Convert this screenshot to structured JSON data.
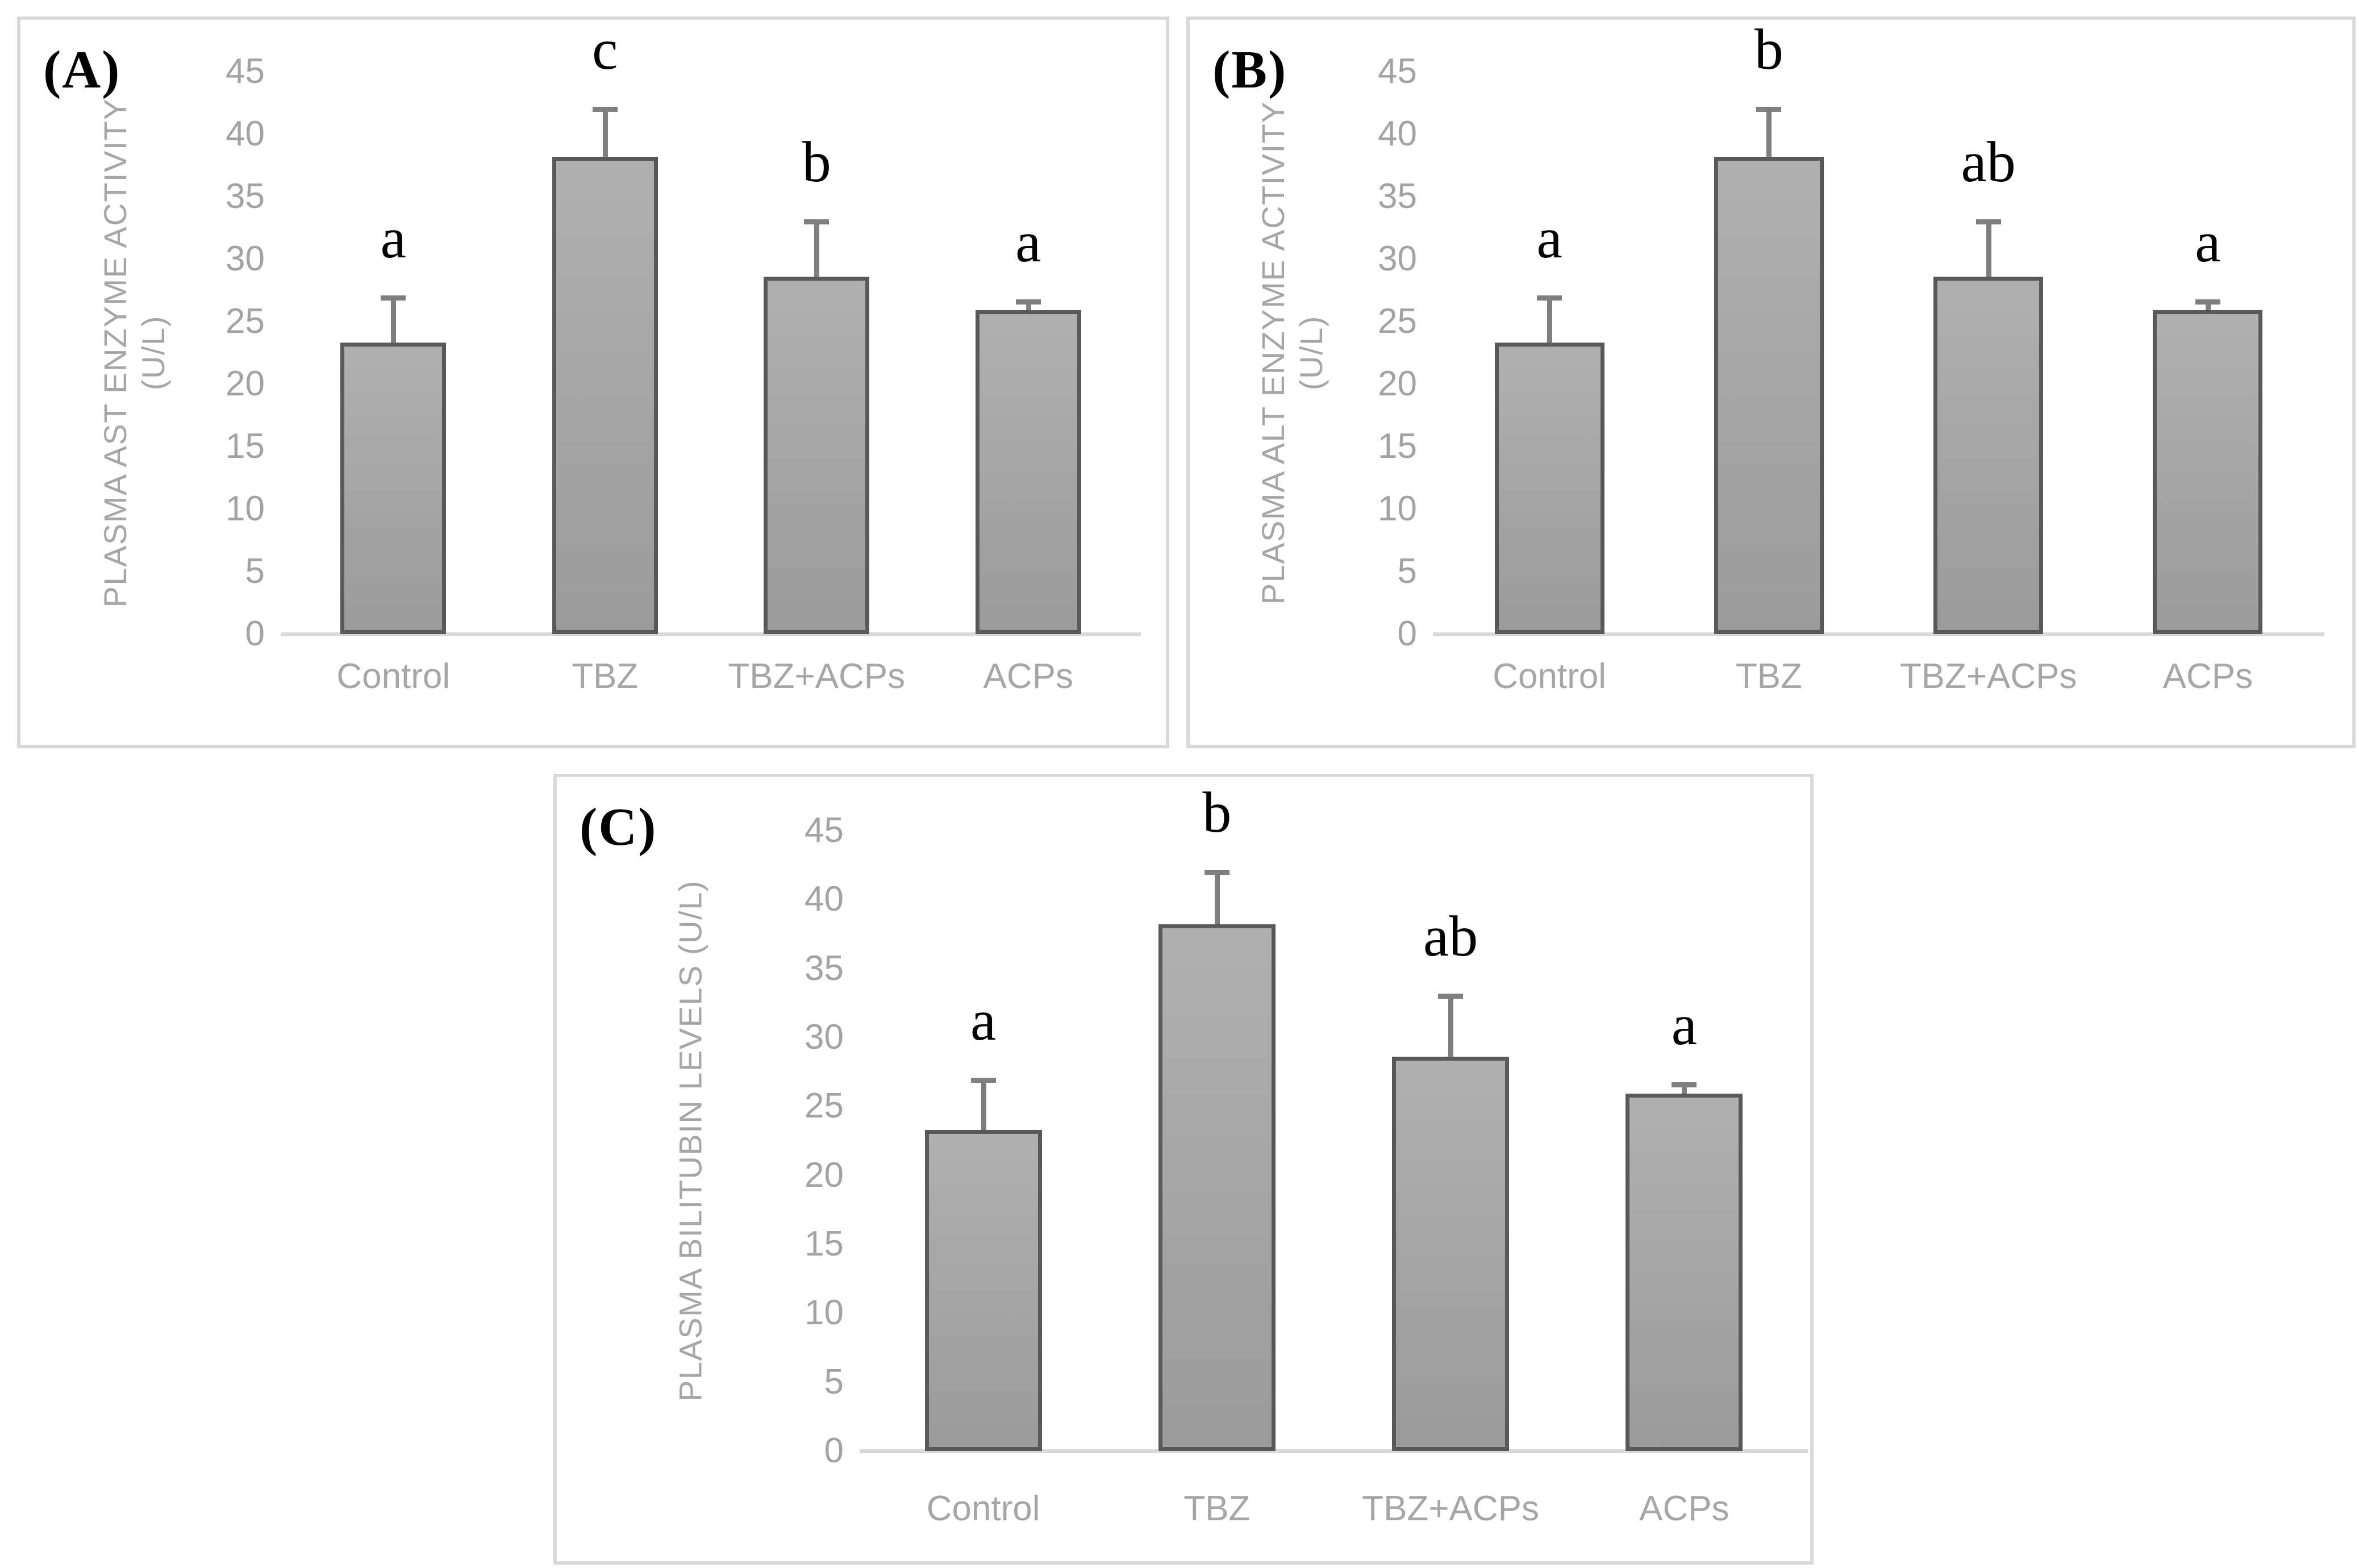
{
  "colors": {
    "background": "#ffffff",
    "panel_border": "#d9d9d9",
    "panel_letter": "#000000",
    "bar_fill_top": "#b1b0b0",
    "bar_fill_bottom": "#9b9b9b",
    "bar_border": "#595959",
    "error_bar": "#7f7f7f",
    "axis_line": "#d9d9d9",
    "tick_label": "#a3a3a3",
    "category_label": "#a6a6a6",
    "y_axis_title": "#a6a6a6",
    "significance_letter": "#000000"
  },
  "chart_data": [
    {
      "type": "bar",
      "panel_label": "(A)",
      "ylabel": "PLASMA AST ENZYME ACTIVITY (U/L)",
      "ylabel_lines": [
        "PLASMA AST ENZYME ACTIVITY",
        "(U/L)"
      ],
      "categories": [
        "Control",
        "TBZ",
        "TBZ+ACPs",
        "ACPs"
      ],
      "values": [
        23.3,
        38.2,
        28.6,
        25.9
      ],
      "error_plus": [
        3.6,
        3.8,
        4.4,
        0.7
      ],
      "significance_letters": [
        "a",
        "c",
        "b",
        "a"
      ],
      "yticks": [
        0,
        5,
        10,
        15,
        20,
        25,
        30,
        35,
        40,
        45
      ],
      "ylim": [
        0,
        45
      ],
      "xlabel": "",
      "grid": false,
      "legend": "none"
    },
    {
      "type": "bar",
      "panel_label": "(B)",
      "ylabel": "PLASMA ALT ENZYME ACTIVITY (U/L)",
      "ylabel_lines": [
        "PLASMA ALT ENZYME ACTIVITY",
        "(U/L)"
      ],
      "categories": [
        "Control",
        "TBZ",
        "TBZ+ACPs",
        "ACPs"
      ],
      "values": [
        23.3,
        38.2,
        28.6,
        25.9
      ],
      "error_plus": [
        3.6,
        3.8,
        4.4,
        0.7
      ],
      "significance_letters": [
        "a",
        "b",
        "ab",
        "a"
      ],
      "yticks": [
        0,
        5,
        10,
        15,
        20,
        25,
        30,
        35,
        40,
        45
      ],
      "ylim": [
        0,
        45
      ],
      "xlabel": "",
      "grid": false,
      "legend": "none"
    },
    {
      "type": "bar",
      "panel_label": "(C)",
      "ylabel": "PLASMA BILITUBIN LEVELS (U/L)",
      "ylabel_lines": [
        "PLASMA BILITUBIN LEVELS (U/L)"
      ],
      "categories": [
        "Control",
        "TBZ",
        "TBZ+ACPs",
        "ACPs"
      ],
      "values": [
        23.3,
        38.2,
        28.6,
        25.9
      ],
      "error_plus": [
        3.6,
        3.8,
        4.4,
        0.7
      ],
      "significance_letters": [
        "a",
        "b",
        "ab",
        "a"
      ],
      "yticks": [
        0,
        5,
        10,
        15,
        20,
        25,
        30,
        35,
        40,
        45
      ],
      "ylim": [
        0,
        45
      ],
      "xlabel": "",
      "grid": false,
      "legend": "none"
    }
  ]
}
